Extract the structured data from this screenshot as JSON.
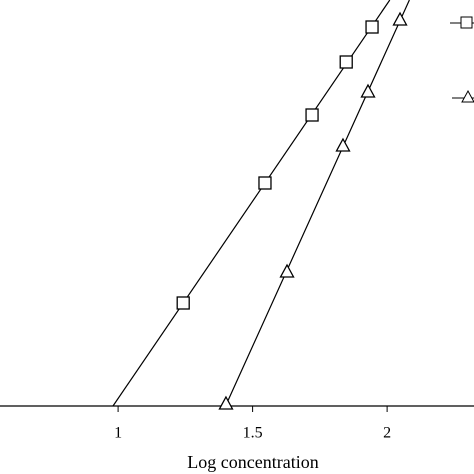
{
  "chart_data": {
    "type": "scatter",
    "xlabel": "Log concentration",
    "xlim": [
      0.561,
      2.323
    ],
    "xticks": [
      1,
      1.5,
      2
    ],
    "ylim": [
      0,
      406
    ],
    "series": [
      {
        "marker": "square",
        "color": "#000",
        "x": [
          1.242,
          1.546,
          1.721,
          1.848,
          1.944
        ],
        "values": [
          103,
          223,
          291,
          344,
          379
        ]
      },
      {
        "marker": "triangle",
        "color": "#000",
        "x": [
          1.401,
          1.628,
          1.836,
          1.929,
          2.048
        ],
        "values": [
          2,
          134,
          260,
          314,
          386
        ]
      }
    ]
  }
}
